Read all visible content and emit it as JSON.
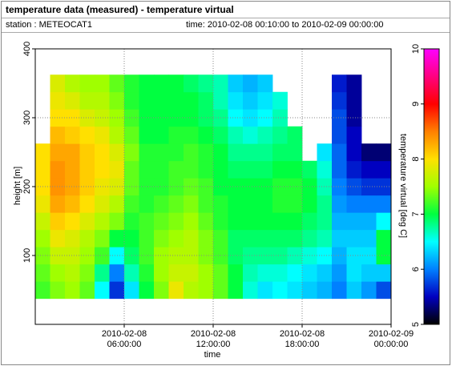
{
  "chart_data": {
    "type": "heatmap",
    "title": "temperature data (measured) - temperature virtual",
    "station": "station : METEOCAT1",
    "time_range": "time: 2010-02-08 00:10:00 to 2010-02-09 00:00:00",
    "x_label": "time",
    "y_label": "height [m]",
    "colorbar_label": "temperature virtual [deg C]",
    "xlim": [
      "2010-02-08 00:00:00",
      "2010-02-09 00:00:00"
    ],
    "xticks": [
      "2010-02-08 06:00:00",
      "2010-02-08 12:00:00",
      "2010-02-08 18:00:00",
      "2010-02-09 00:00:00"
    ],
    "ylim": [
      0,
      400
    ],
    "yticks": [
      100,
      200,
      300,
      400
    ],
    "zlim": [
      5,
      10
    ],
    "zticks": [
      5,
      6,
      7,
      8,
      9,
      10
    ],
    "colorscale": [
      "#000000",
      "#0000c0",
      "#0080ff",
      "#00ffff",
      "#00ff40",
      "#a0ff00",
      "#ffe000",
      "#ff8000",
      "#ff0000",
      "#ff0080",
      "#ff00ff"
    ],
    "grid": true,
    "x": [
      "2010-02-08 00:00:00",
      "2010-02-08 01:00:00",
      "2010-02-08 02:00:00",
      "2010-02-08 03:00:00",
      "2010-02-08 04:00:00",
      "2010-02-08 05:00:00",
      "2010-02-08 06:00:00",
      "2010-02-08 07:00:00",
      "2010-02-08 08:00:00",
      "2010-02-08 09:00:00",
      "2010-02-08 10:00:00",
      "2010-02-08 11:00:00",
      "2010-02-08 12:00:00",
      "2010-02-08 13:00:00",
      "2010-02-08 14:00:00",
      "2010-02-08 15:00:00",
      "2010-02-08 16:00:00",
      "2010-02-08 17:00:00",
      "2010-02-08 18:00:00",
      "2010-02-08 19:00:00",
      "2010-02-08 20:00:00",
      "2010-02-08 21:00:00",
      "2010-02-08 22:00:00",
      "2010-02-08 23:00:00"
    ],
    "y": [
      50,
      75,
      100,
      125,
      150,
      175,
      200,
      225,
      250,
      275,
      300,
      325,
      350
    ],
    "z": [
      [
        7.2,
        7.4,
        7.5,
        7.3,
        6.5,
        5.7,
        6.4,
        7.0,
        7.4,
        7.9,
        7.6,
        7.5,
        7.3,
        7.0,
        6.6,
        6.4,
        6.5,
        6.4,
        6.3,
        6.2,
        6.0,
        6.3,
        6.1,
        5.8
      ],
      [
        7.3,
        7.5,
        7.6,
        7.4,
        6.8,
        6.0,
        6.7,
        7.1,
        7.5,
        7.7,
        7.7,
        7.5,
        7.3,
        7.0,
        6.7,
        6.6,
        6.6,
        6.5,
        6.4,
        6.3,
        6.1,
        6.4,
        6.3,
        6.3
      ],
      [
        7.4,
        7.7,
        7.7,
        7.5,
        7.2,
        6.5,
        6.9,
        7.2,
        7.5,
        7.6,
        7.6,
        7.4,
        7.2,
        6.9,
        6.8,
        6.8,
        6.8,
        6.7,
        6.6,
        6.5,
        6.2,
        6.4,
        6.4,
        7.0
      ],
      [
        7.5,
        7.9,
        7.8,
        7.6,
        7.4,
        7.0,
        7.0,
        7.2,
        7.4,
        7.5,
        7.6,
        7.4,
        7.2,
        6.9,
        6.9,
        6.9,
        6.9,
        6.9,
        6.8,
        6.7,
        6.3,
        6.3,
        6.3,
        7.0
      ],
      [
        7.7,
        8.1,
        8.0,
        7.8,
        7.6,
        7.4,
        7.1,
        7.2,
        7.3,
        7.4,
        7.5,
        7.3,
        7.1,
        7.0,
        7.0,
        7.0,
        7.0,
        7.0,
        6.9,
        6.8,
        6.2,
        6.2,
        6.2,
        6.5
      ],
      [
        7.9,
        8.3,
        8.2,
        8.0,
        7.8,
        7.6,
        7.2,
        7.1,
        7.2,
        7.3,
        7.4,
        7.2,
        7.1,
        7.0,
        7.0,
        7.0,
        7.1,
        7.1,
        7.0,
        6.8,
        6.1,
        6.0,
        6.0,
        6.0
      ],
      [
        8.0,
        8.4,
        8.3,
        8.1,
        7.9,
        7.8,
        7.3,
        7.1,
        7.1,
        7.2,
        7.3,
        7.2,
        7.0,
        7.0,
        7.0,
        7.0,
        7.1,
        7.1,
        7.0,
        6.7,
        6.0,
        5.8,
        5.7,
        5.7
      ],
      [
        8.0,
        8.4,
        8.3,
        8.1,
        8.0,
        7.9,
        7.3,
        7.1,
        7.1,
        7.2,
        7.2,
        7.1,
        7.0,
        6.9,
        6.9,
        6.9,
        7.0,
        7.0,
        6.9,
        6.6,
        5.9,
        5.6,
        5.5,
        5.5
      ],
      [
        8.0,
        8.3,
        8.3,
        8.1,
        8.0,
        7.8,
        7.4,
        7.1,
        7.1,
        7.1,
        7.2,
        7.1,
        7.0,
        6.8,
        6.8,
        6.8,
        6.9,
        6.9,
        null,
        6.4,
        5.9,
        5.5,
        5.3,
        5.3
      ],
      [
        null,
        8.2,
        8.1,
        8.0,
        7.9,
        7.6,
        7.3,
        7.0,
        7.0,
        7.1,
        7.1,
        7.0,
        6.9,
        6.7,
        6.6,
        6.7,
        6.8,
        6.9,
        null,
        null,
        5.8,
        5.5,
        null,
        null
      ],
      [
        null,
        8.0,
        8.0,
        7.8,
        7.7,
        7.5,
        7.2,
        7.0,
        7.0,
        7.0,
        7.0,
        6.9,
        6.8,
        6.5,
        6.4,
        6.5,
        6.7,
        null,
        null,
        null,
        5.8,
        5.4,
        null,
        null
      ],
      [
        null,
        7.9,
        7.8,
        7.6,
        7.6,
        7.4,
        7.1,
        7.0,
        7.0,
        7.0,
        7.0,
        6.9,
        6.7,
        6.4,
        6.3,
        6.4,
        6.6,
        null,
        null,
        null,
        5.7,
        5.4,
        null,
        null
      ],
      [
        null,
        7.8,
        7.6,
        7.5,
        7.5,
        7.3,
        7.1,
        7.0,
        7.0,
        7.0,
        6.9,
        6.8,
        6.7,
        6.3,
        6.2,
        6.3,
        null,
        null,
        null,
        null,
        5.6,
        5.4,
        null,
        null
      ]
    ]
  }
}
